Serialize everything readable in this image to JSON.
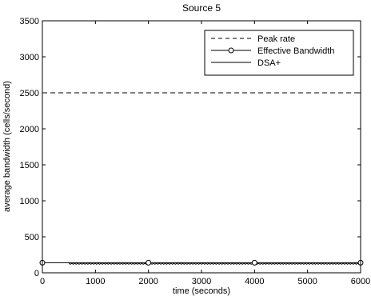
{
  "chart_data": {
    "type": "line",
    "title": "Source 5",
    "xlabel": "time (seconds)",
    "ylabel": "average bandwidth (cells/second)",
    "xlim": [
      0,
      6000
    ],
    "ylim": [
      0,
      3500
    ],
    "x_ticks": [
      0,
      1000,
      2000,
      3000,
      4000,
      5000,
      6000
    ],
    "y_ticks": [
      0,
      500,
      1000,
      1500,
      2000,
      2500,
      3000,
      3500
    ],
    "x_tick_labels": [
      "0",
      "1000",
      "2000",
      "3000",
      "4000",
      "5000",
      "6000"
    ],
    "y_tick_labels": [
      "0",
      "500",
      "1000",
      "1500",
      "2000",
      "2500",
      "3000",
      "3500"
    ],
    "grid": false,
    "legend_position": "top-right",
    "series": [
      {
        "name": "Peak rate",
        "style": "dashed",
        "color": "#000000",
        "x": [
          0,
          6000
        ],
        "y": [
          2500,
          2500
        ]
      },
      {
        "name": "Effective Bandwidth",
        "style": "solid-circle-markers",
        "color": "#000000",
        "x": [
          0,
          2000,
          4000,
          6000
        ],
        "y": [
          140,
          140,
          140,
          140
        ]
      },
      {
        "name": "DSA+",
        "style": "solid-dense",
        "color": "#000000",
        "x": [
          500,
          1000,
          1500,
          2000,
          2500,
          3000,
          3500,
          4000,
          4500,
          5000,
          5500,
          6000
        ],
        "y": [
          125,
          125,
          125,
          125,
          125,
          125,
          125,
          125,
          125,
          125,
          125,
          125
        ]
      }
    ]
  }
}
